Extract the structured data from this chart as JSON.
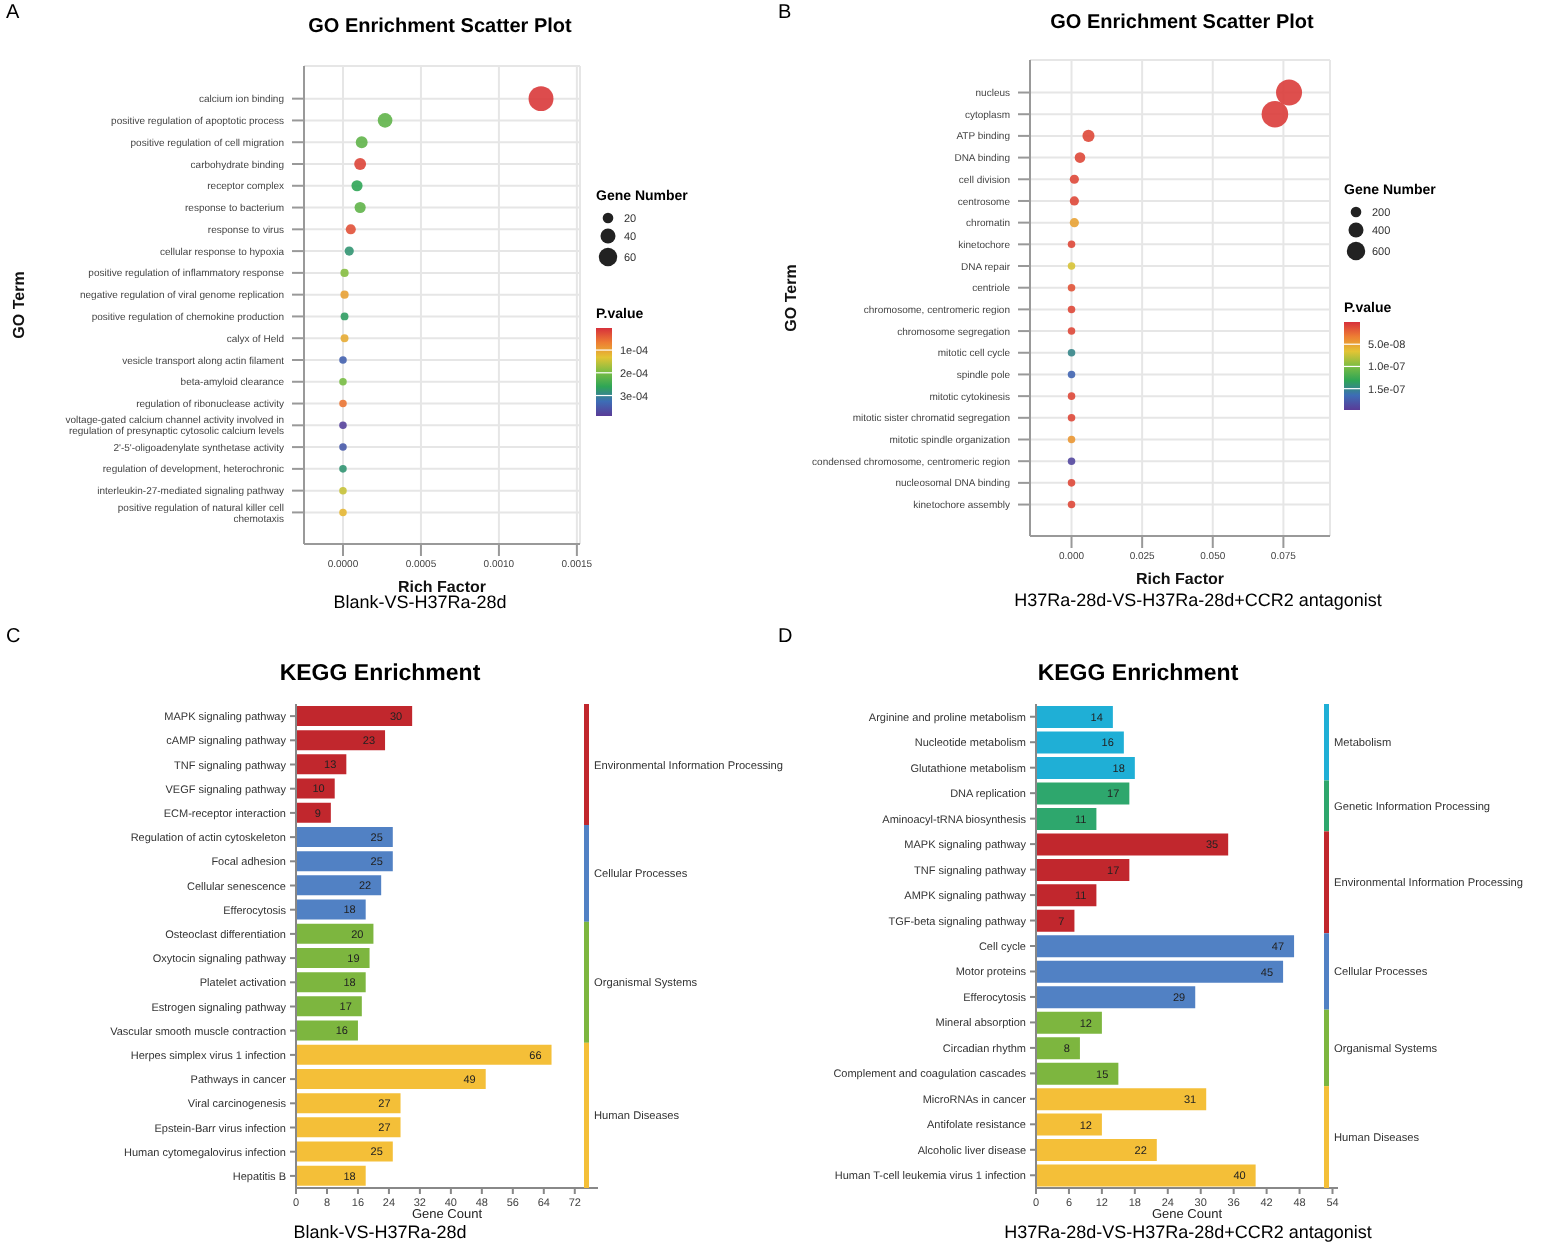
{
  "chart_data": [
    {
      "type": "scatter",
      "orientation": "horizontal",
      "title": "GO Enrichment Scatter Plot",
      "xlabel": "Rich Factor",
      "ylabel": "GO Term",
      "legend_title": "Gene Number",
      "clabel": "P.value",
      "marker": "circle",
      "grid": true,
      "annotations": [
        "A",
        "Blank-VS-H37Ra-28d"
      ],
      "categories": [
        "calcium ion binding",
        "positive regulation of apoptotic process",
        "positive regulation of cell migration",
        "carbohydrate binding",
        "receptor complex",
        "response to bacterium",
        "response to virus",
        "cellular response to hypoxia",
        "positive regulation of inflammatory response",
        "negative regulation of viral genome replication",
        "positive regulation of chemokine production",
        "calyx of Held",
        "vesicle transport along actin filament",
        "beta-amyloid clearance",
        "regulation of ribonuclease activity",
        "voltage-gated calcium channel activity involved in regulation of presynaptic cytosolic calcium levels",
        "2'-5'-oligoadenylate synthetase activity",
        "regulation of development, heterochronic",
        "interleukin-27-mediated signaling pathway",
        "positive regulation of natural killer cell chemotaxis"
      ],
      "values": [
        0.00127,
        0.00027,
        0.00012,
        0.00011,
        9e-05,
        0.00011,
        5e-05,
        4e-05,
        1e-05,
        1e-05,
        1e-05,
        1e-05,
        0,
        0,
        0,
        0,
        0,
        0,
        0,
        0
      ],
      "sizes": [
        110,
        38,
        25,
        25,
        22,
        22,
        18,
        15,
        12,
        12,
        11,
        11,
        10,
        10,
        10,
        10,
        10,
        10,
        10,
        10
      ],
      "cvalues": [
        1e-05,
        0.00022,
        0.00022,
        2e-05,
        0.00026,
        0.00022,
        3e-05,
        0.00028,
        0.00019,
        0.0001,
        0.00027,
        0.00011,
        0.00034,
        0.0002,
        6e-05,
        0.00038,
        0.00035,
        0.00028,
        0.00015,
        0.00012
      ],
      "size_legend": [
        20,
        40,
        60
      ],
      "clim": [
        3e-06,
        0.00039
      ],
      "cticks": [
        {
          "value": 0.0001,
          "label": "1e-04"
        },
        {
          "value": 0.0002,
          "label": "2e-04"
        },
        {
          "value": 0.0003,
          "label": "3e-04"
        }
      ],
      "xlim": [
        -0.00025,
        0.00152
      ],
      "xticks": [
        {
          "value": 0,
          "label": "0.0000"
        },
        {
          "value": 0.0005,
          "label": "0.0005"
        },
        {
          "value": 0.001,
          "label": "0.0010"
        },
        {
          "value": 0.0015,
          "label": "0.0015"
        }
      ]
    },
    {
      "type": "scatter",
      "orientation": "horizontal",
      "title": "GO Enrichment Scatter Plot",
      "xlabel": "Rich Factor",
      "ylabel": "GO Term",
      "legend_title": "Gene Number",
      "clabel": "P.value",
      "marker": "circle",
      "grid": true,
      "annotations": [
        "B",
        "H37Ra-28d-VS-H37Ra-28d+CCR2 antagonist"
      ],
      "categories": [
        "nucleus",
        "cytoplasm",
        "ATP binding",
        "DNA binding",
        "cell division",
        "centrosome",
        "chromatin",
        "kinetochore",
        "DNA repair",
        "centriole",
        "chromosome, centromeric region",
        "chromosome segregation",
        "mitotic cell cycle",
        "spindle pole",
        "mitotic cytokinesis",
        "mitotic sister chromatid segregation",
        "mitotic spindle organization",
        "condensed chromosome, centromeric region",
        "nucleosomal DNA binding",
        "kinetochore assembly"
      ],
      "values": [
        0.077,
        0.072,
        0.006,
        0.003,
        0.001,
        0.001,
        0.001,
        0,
        0,
        0,
        0,
        0,
        0,
        0,
        0,
        0,
        0,
        0,
        0,
        0
      ],
      "sizes": [
        1200,
        1250,
        260,
        200,
        150,
        150,
        150,
        100,
        100,
        100,
        100,
        100,
        100,
        100,
        100,
        100,
        100,
        100,
        100,
        100
      ],
      "cvalues": [
        5e-09,
        5e-09,
        1e-08,
        1e-08,
        1e-08,
        1e-08,
        5e-08,
        1e-08,
        7e-08,
        1.5e-08,
        1e-08,
        1e-08,
        1.5e-07,
        1.7e-07,
        1e-08,
        1e-08,
        4.5e-08,
        1.9e-07,
        1e-08,
        1e-08
      ],
      "size_legend": [
        200,
        400,
        600
      ],
      "clim": [
        0,
        1.98e-07
      ],
      "cticks": [
        {
          "value": 5e-08,
          "label": "5.0e-08"
        },
        {
          "value": 1e-07,
          "label": "1.0e-07"
        },
        {
          "value": 1.5e-07,
          "label": "1.5e-07"
        }
      ],
      "xlim": [
        -0.0147,
        0.0915
      ],
      "xticks": [
        {
          "value": 0,
          "label": "0.000"
        },
        {
          "value": 0.025,
          "label": "0.025"
        },
        {
          "value": 0.05,
          "label": "0.050"
        },
        {
          "value": 0.075,
          "label": "0.075"
        }
      ]
    },
    {
      "type": "bar",
      "orientation": "horizontal",
      "title": "KEGG Enrichment",
      "xlabel": "Gene Count",
      "data_labels": true,
      "legend": "right",
      "annotations": [
        "C",
        "Blank-VS-H37Ra-28d"
      ],
      "categories": [
        "MAPK signaling pathway",
        "cAMP signaling pathway",
        "TNF signaling pathway",
        "VEGF signaling pathway",
        "ECM-receptor interaction",
        "Regulation of actin cytoskeleton",
        "Focal adhesion",
        "Cellular senescence",
        "Efferocytosis",
        "Osteoclast differentiation",
        "Oxytocin signaling pathway",
        "Platelet activation",
        "Estrogen signaling pathway",
        "Vascular smooth muscle contraction",
        "Herpes simplex virus 1 infection",
        "Pathways in cancer",
        "Viral carcinogenesis",
        "Epstein-Barr virus infection",
        "Human cytomegalovirus infection",
        "Hepatitis B"
      ],
      "series": [
        {
          "name": "Environmental Information Processing",
          "color": "#c1272d",
          "values": [
            30,
            23,
            13,
            10,
            9,
            null,
            null,
            null,
            null,
            null,
            null,
            null,
            null,
            null,
            null,
            null,
            null,
            null,
            null,
            null
          ]
        },
        {
          "name": "Cellular Processes",
          "color": "#5181c4",
          "values": [
            null,
            null,
            null,
            null,
            null,
            25,
            25,
            22,
            18,
            null,
            null,
            null,
            null,
            null,
            null,
            null,
            null,
            null,
            null,
            null
          ]
        },
        {
          "name": "Organismal Systems",
          "color": "#7db63f",
          "values": [
            null,
            null,
            null,
            null,
            null,
            null,
            null,
            null,
            null,
            20,
            19,
            18,
            17,
            16,
            null,
            null,
            null,
            null,
            null,
            null
          ]
        },
        {
          "name": "Human Diseases",
          "color": "#f4bf38",
          "values": [
            null,
            null,
            null,
            null,
            null,
            null,
            null,
            null,
            null,
            null,
            null,
            null,
            null,
            null,
            66,
            49,
            27,
            27,
            25,
            18
          ]
        }
      ],
      "xlim": [
        0,
        78
      ],
      "xticks": [
        0,
        8,
        16,
        24,
        32,
        40,
        48,
        56,
        64,
        72
      ]
    },
    {
      "type": "bar",
      "orientation": "horizontal",
      "title": "KEGG Enrichment",
      "xlabel": "Gene Count",
      "data_labels": true,
      "legend": "right",
      "annotations": [
        "D",
        "H37Ra-28d-VS-H37Ra-28d+CCR2 antagonist"
      ],
      "categories": [
        "Arginine and proline metabolism",
        "Nucleotide metabolism",
        "Glutathione metabolism",
        "DNA replication",
        "Aminoacyl-tRNA biosynthesis",
        "MAPK signaling pathway",
        "TNF signaling pathway",
        "AMPK signaling pathway",
        "TGF-beta signaling pathway",
        "Cell cycle",
        "Motor proteins",
        "Efferocytosis",
        "Mineral absorption",
        "Circadian rhythm",
        "Complement and coagulation cascades",
        "MicroRNAs in cancer",
        "Antifolate resistance",
        "Alcoholic liver disease",
        "Human T-cell leukemia virus 1 infection"
      ],
      "series": [
        {
          "name": "Metabolism",
          "color": "#1fafd6",
          "values": [
            14,
            16,
            18,
            null,
            null,
            null,
            null,
            null,
            null,
            null,
            null,
            null,
            null,
            null,
            null,
            null,
            null,
            null,
            null
          ]
        },
        {
          "name": "Genetic Information Processing",
          "color": "#2ea76d",
          "values": [
            null,
            null,
            null,
            17,
            11,
            null,
            null,
            null,
            null,
            null,
            null,
            null,
            null,
            null,
            null,
            null,
            null,
            null,
            null
          ]
        },
        {
          "name": "Environmental Information Processing",
          "color": "#c1272d",
          "values": [
            null,
            null,
            null,
            null,
            null,
            35,
            17,
            11,
            7,
            null,
            null,
            null,
            null,
            null,
            null,
            null,
            null,
            null,
            null
          ]
        },
        {
          "name": "Cellular Processes",
          "color": "#5181c4",
          "values": [
            null,
            null,
            null,
            null,
            null,
            null,
            null,
            null,
            null,
            47,
            45,
            29,
            null,
            null,
            null,
            null,
            null,
            null,
            null
          ]
        },
        {
          "name": "Organismal Systems",
          "color": "#7db63f",
          "values": [
            null,
            null,
            null,
            null,
            null,
            null,
            null,
            null,
            null,
            null,
            null,
            null,
            12,
            8,
            15,
            null,
            null,
            null,
            null
          ]
        },
        {
          "name": "Human Diseases",
          "color": "#f4bf38",
          "values": [
            null,
            null,
            null,
            null,
            null,
            null,
            null,
            null,
            null,
            null,
            null,
            null,
            null,
            null,
            null,
            31,
            12,
            22,
            40
          ]
        }
      ],
      "xlim": [
        0,
        55
      ],
      "xticks": [
        0,
        6,
        12,
        18,
        24,
        30,
        36,
        42,
        48,
        54
      ]
    }
  ]
}
